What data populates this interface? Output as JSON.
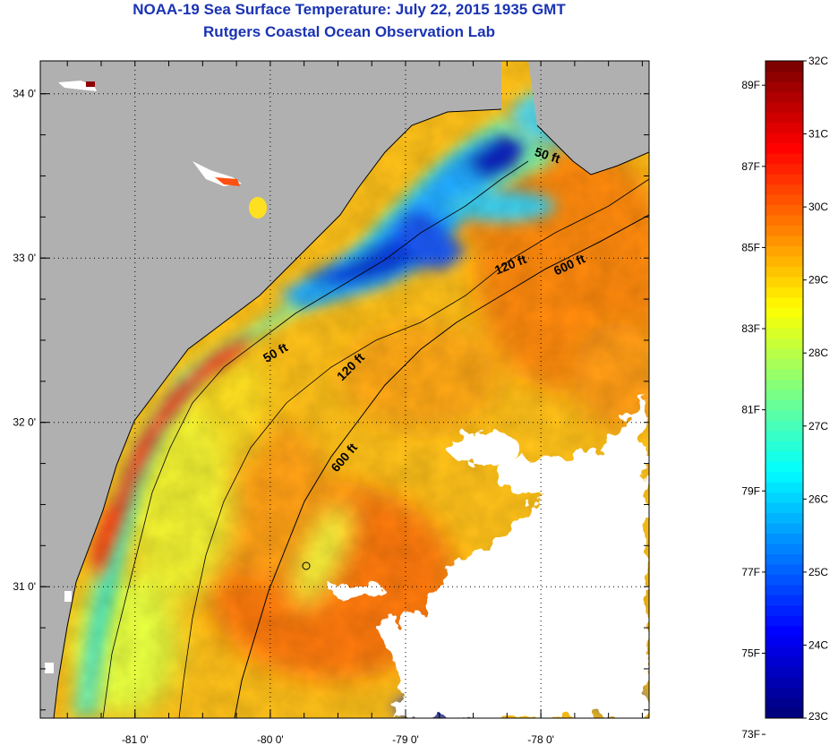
{
  "header": {
    "title": "NOAA-19 Sea Surface Temperature:  July 22, 2015 1935 GMT",
    "subtitle": "Rutgers Coastal Ocean Observation Lab"
  },
  "map": {
    "lon_range": [
      -81.7,
      -77.2
    ],
    "lat_range": [
      30.2,
      34.2
    ],
    "x_ticks": [
      {
        "value": -81,
        "label": "-81 0'"
      },
      {
        "value": -80,
        "label": "-80 0'"
      },
      {
        "value": -79,
        "label": "-79 0'"
      },
      {
        "value": -78,
        "label": "-78 0'"
      }
    ],
    "y_ticks": [
      {
        "value": 34,
        "label": "34 0'"
      },
      {
        "value": 33,
        "label": "33 0'"
      },
      {
        "value": 32,
        "label": "32 0'"
      },
      {
        "value": 31,
        "label": "31 0'"
      }
    ],
    "grid": "dotted",
    "land_color": "#b0b0b0",
    "cloud_color": "#ffffff",
    "contour_labels": [
      "50 ft",
      "120 ft",
      "600 ft",
      "50 ft",
      "120 ft",
      "600 ft"
    ]
  },
  "colorbar": {
    "min_c": 23,
    "max_c": 32,
    "celsius_labels": [
      "32C",
      "31C",
      "30C",
      "29C",
      "28C",
      "27C",
      "26C",
      "25C",
      "24C",
      "23C"
    ],
    "fahrenheit_labels": [
      "89F",
      "87F",
      "85F",
      "83F",
      "81F",
      "79F",
      "77F",
      "75F",
      "73F"
    ],
    "fahrenheit_values": [
      89,
      87,
      85,
      83,
      81,
      79,
      77,
      75,
      73
    ],
    "colors": [
      "#00007f",
      "#0000ff",
      "#007fff",
      "#00ffff",
      "#7fff7f",
      "#ffff00",
      "#ff7f00",
      "#ff0000",
      "#7f0000"
    ]
  }
}
